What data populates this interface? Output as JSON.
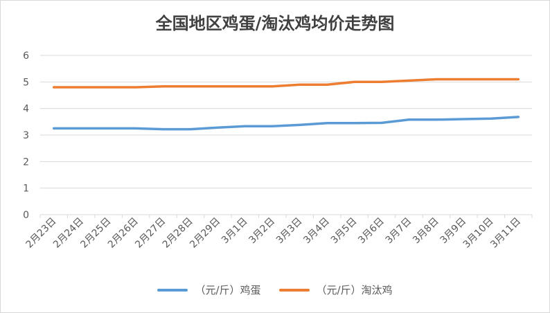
{
  "chart_data": {
    "type": "line",
    "title": "全国地区鸡蛋/淘汰鸡均价走势图",
    "categories": [
      "2月23日",
      "2月24日",
      "2月25日",
      "2月26日",
      "2月27日",
      "2月28日",
      "2月29日",
      "3月1日",
      "3月2日",
      "3月3日",
      "3月4日",
      "3月5日",
      "3月6日",
      "3月7日",
      "3月8日",
      "3月9日",
      "3月10日",
      "3月11日"
    ],
    "ylim": [
      0,
      6
    ],
    "yticks": [
      "0",
      "1",
      "2",
      "3",
      "4",
      "5",
      "6"
    ],
    "grid": true,
    "legend_position": "bottom",
    "series": [
      {
        "name": "（元/斤）鸡蛋",
        "color": "#5b9bd5",
        "values": [
          3.25,
          3.25,
          3.25,
          3.25,
          3.22,
          3.22,
          3.28,
          3.33,
          3.33,
          3.38,
          3.45,
          3.45,
          3.46,
          3.58,
          3.58,
          3.6,
          3.62,
          3.68
        ]
      },
      {
        "name": "（元/斤）淘汰鸡",
        "color": "#ed7d31",
        "values": [
          4.8,
          4.8,
          4.8,
          4.8,
          4.83,
          4.83,
          4.83,
          4.83,
          4.83,
          4.9,
          4.9,
          5.0,
          5.0,
          5.05,
          5.1,
          5.1,
          5.1,
          5.1
        ]
      }
    ]
  }
}
